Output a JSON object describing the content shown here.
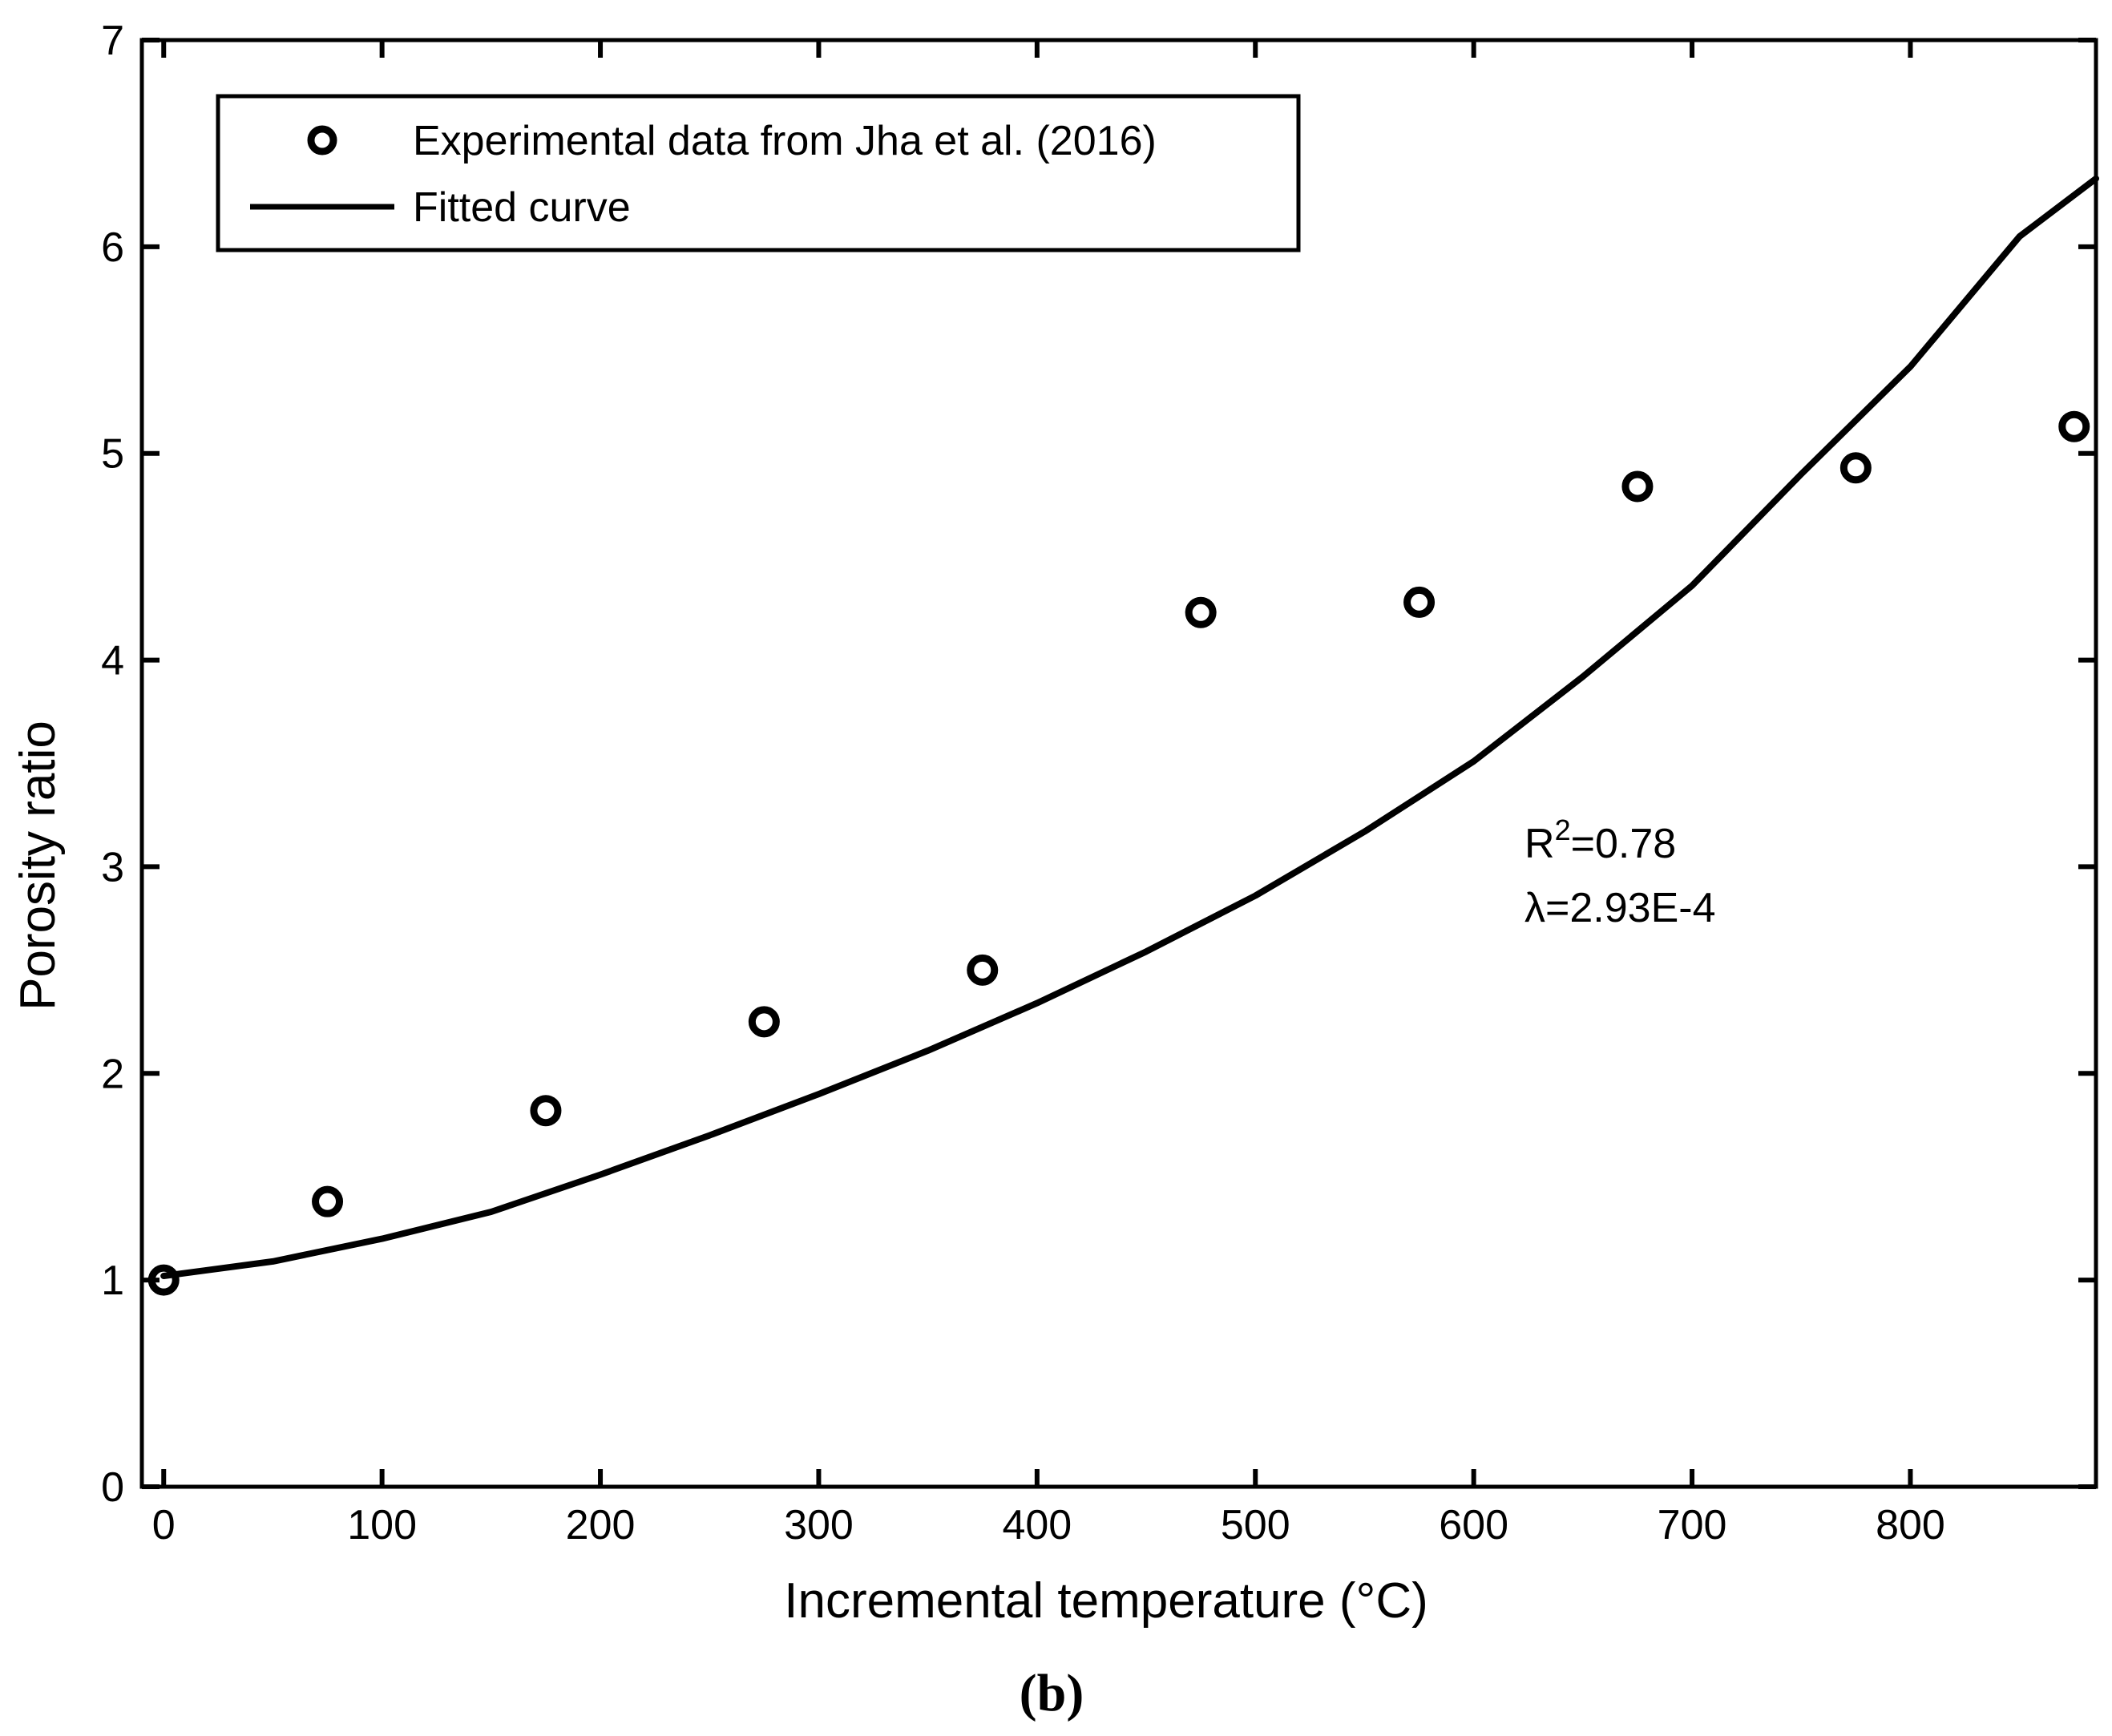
{
  "chart_data": {
    "type": "scatter",
    "title": "",
    "xlabel": "Incremental temperature (°C)",
    "ylabel": "Porosity ratio",
    "xlim": [
      -10,
      885
    ],
    "ylim": [
      0,
      7
    ],
    "x_ticks": [
      0,
      100,
      200,
      300,
      400,
      500,
      600,
      700,
      800
    ],
    "y_ticks": [
      0,
      1,
      2,
      3,
      4,
      5,
      6,
      7
    ],
    "grid": false,
    "legend_position": "top-left",
    "series": [
      {
        "name": "Experimental data from Jha et al. (2016)",
        "kind": "markers",
        "marker": "circle",
        "x": [
          0,
          75,
          175,
          275,
          375,
          475,
          575,
          675,
          775,
          875
        ],
        "y": [
          1.0,
          1.38,
          1.82,
          2.25,
          2.5,
          4.23,
          4.28,
          4.84,
          4.93,
          5.13
        ]
      },
      {
        "name": "Fitted curve",
        "kind": "line",
        "x": [
          0,
          50,
          100,
          150,
          200,
          250,
          300,
          350,
          400,
          450,
          500,
          550,
          600,
          650,
          700,
          750,
          800,
          850,
          885
        ],
        "y": [
          1.02,
          1.09,
          1.2,
          1.33,
          1.51,
          1.7,
          1.9,
          2.11,
          2.34,
          2.59,
          2.86,
          3.17,
          3.51,
          3.92,
          4.36,
          4.9,
          5.42,
          6.05,
          6.33
        ]
      }
    ],
    "annotations": {
      "r_squared_prefix": "R",
      "r_squared_sup": "2",
      "r_squared_value": "=0.78",
      "lambda": "λ=2.93E-4"
    },
    "caption": "(b)"
  }
}
